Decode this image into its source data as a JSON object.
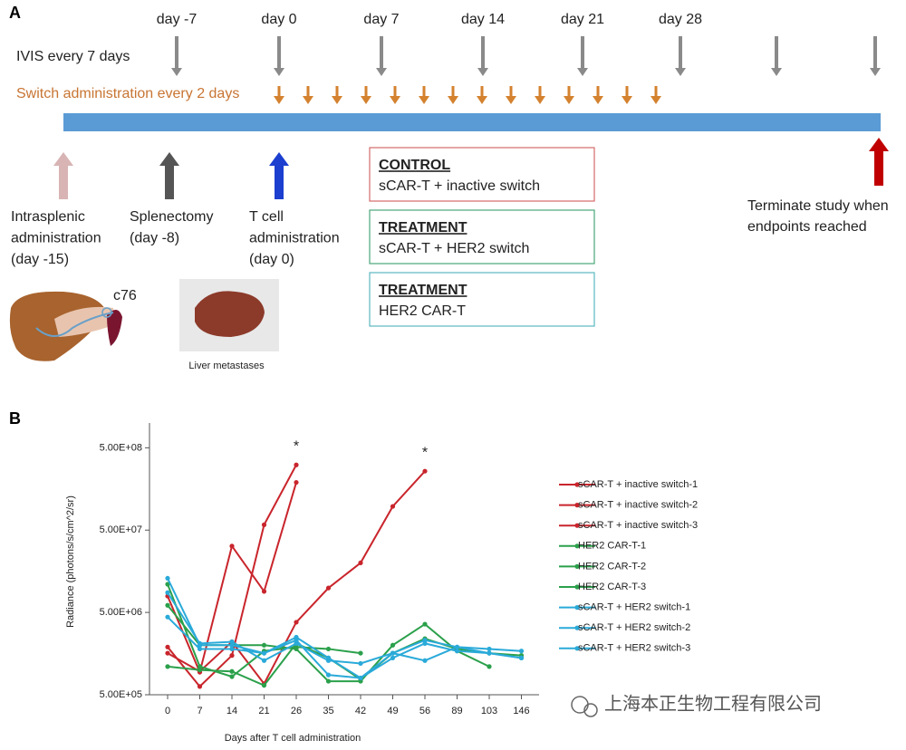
{
  "panel_a": {
    "label": "A",
    "days": [
      "day -7",
      "day 0",
      "day 7",
      "day 14",
      "day 21",
      "day 28"
    ],
    "ivis": "IVIS every 7 days",
    "switch": "Switch administration every 2 days",
    "events": [
      [
        "Intrasplenic",
        "administration",
        "(day -15)"
      ],
      [
        "Splenectomy",
        "(day -8)"
      ],
      [
        "T cell",
        "administration",
        "(day 0)"
      ]
    ],
    "terminate": [
      "Terminate study when",
      "endpoints reached"
    ],
    "groups": [
      {
        "heading": "CONTROL",
        "text": "sCAR-T + inactive switch"
      },
      {
        "heading": "TREATMENT",
        "text": "sCAR-T + HER2 switch"
      },
      {
        "heading": "TREATMENT",
        "text": "HER2 CAR-T"
      }
    ],
    "cell_line": "c76",
    "photo_caption": "Liver metastases"
  },
  "chart_data": {
    "type": "line",
    "label": "B",
    "y_label": "Radiance (photons/s/cm^2/sr)",
    "x_label": "Days after T cell administration",
    "categories": [
      "0",
      "7",
      "14",
      "21",
      "26",
      "35",
      "42",
      "49",
      "56",
      "89",
      "103",
      "146"
    ],
    "scale": "log",
    "ylim": [
      500000,
      1000000000
    ],
    "yticks": [
      {
        "value": 500000,
        "label": "5.00E+05"
      },
      {
        "value": 5000000,
        "label": "5.00E+06"
      },
      {
        "value": 50000000,
        "label": "5.00E+07"
      },
      {
        "value": 500000000,
        "label": "5.00E+08"
      }
    ],
    "annotations": [
      {
        "text": "*",
        "x": "26"
      },
      {
        "text": "*",
        "x": "56"
      }
    ],
    "series": [
      {
        "name": "sCAR-T + inactive switch-1",
        "color": "#c9252c",
        "values": [
          7900000,
          940000,
          32000000,
          9000000,
          190000000,
          null,
          null,
          null,
          null,
          null,
          null,
          null
        ]
      },
      {
        "name": "sCAR-T + inactive switch-2",
        "color": "#c9252c",
        "values": [
          1900000,
          630000,
          1500000,
          58000000,
          310000000,
          null,
          null,
          null,
          null,
          null,
          null,
          null
        ]
      },
      {
        "name": "sCAR-T + inactive switch-3",
        "color": "#c9252c",
        "values": [
          1600000,
          960000,
          2200000,
          680000,
          3800000,
          9900000,
          20000000,
          97000000,
          260000000,
          null,
          null,
          null
        ]
      },
      {
        "name": "HER2 CAR-T-1",
        "color": "#2ba04b",
        "values": [
          11000000,
          1100000,
          830000,
          1700000,
          1900000,
          1800000,
          1600000,
          null,
          null,
          null,
          null,
          null
        ]
      },
      {
        "name": "HER2 CAR-T-2",
        "color": "#2ba04b",
        "values": [
          6100000,
          2000000,
          2000000,
          2000000,
          1800000,
          730000,
          730000,
          2000000,
          3600000,
          1700000,
          1100000,
          null
        ]
      },
      {
        "name": "HER2 CAR-T-3",
        "color": "#2ba04b",
        "values": [
          1100000,
          1000000,
          960000,
          650000,
          2100000,
          1400000,
          770000,
          1600000,
          2400000,
          1800000,
          1600000,
          1500000
        ]
      },
      {
        "name": "sCAR-T + HER2 switch-1",
        "color": "#2aaad9",
        "values": [
          13000000,
          2000000,
          2000000,
          1600000,
          2500000,
          1400000,
          800000,
          1600000,
          2300000,
          1900000,
          1800000,
          1700000
        ]
      },
      {
        "name": "sCAR-T + HER2 switch-2",
        "color": "#2aaad9",
        "values": [
          4400000,
          1800000,
          1800000,
          1600000,
          2300000,
          870000,
          800000,
          1400000,
          2100000,
          1700000,
          1600000,
          1400000
        ]
      },
      {
        "name": "sCAR-T + HER2 switch-3",
        "color": "#2aaad9",
        "values": [
          8700000,
          2100000,
          2200000,
          1300000,
          2100000,
          1300000,
          1200000,
          1600000,
          1300000,
          1900000,
          1600000,
          1400000
        ]
      }
    ]
  },
  "watermark": "上海本正生物工程有限公司"
}
